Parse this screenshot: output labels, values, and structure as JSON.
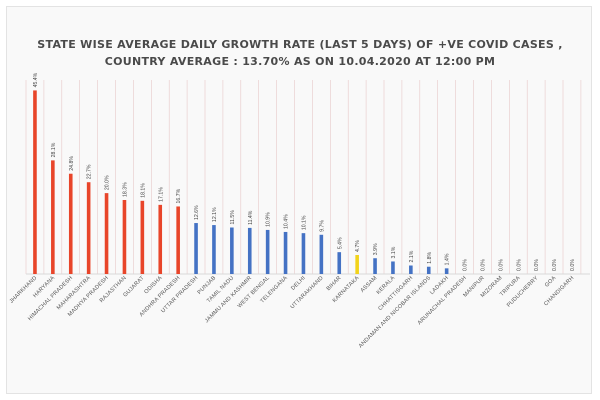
{
  "chart_data": {
    "type": "bar",
    "title": "STATE WISE AVERAGE DAILY GROWTH RATE (LAST 5 DAYS) OF +VE COVID CASES ,",
    "subtitle": "COUNTRY AVERAGE : 13.70% AS ON 10.04.2020 AT 12:00 PM",
    "xlabel": "",
    "ylabel": "",
    "ylim": [
      0,
      50
    ],
    "grid": true,
    "legend": "none",
    "categories": [
      "JHARKHAND",
      "HARYANA",
      "HIMACHAL PRADESH",
      "MAHARASHTRA",
      "MADHYA PRADESH",
      "RAJASTHAN",
      "GUJARAT",
      "ODISHA",
      "ANDHRA PRADESH",
      "UTTAR PRADESH",
      "PUNJAB",
      "TAMIL NADU",
      "JAMMU AND KASHMIR",
      "WEST BENGAL",
      "TELENGANA",
      "DELHI",
      "UTTARAKHAND",
      "BIHAR",
      "KARNATAKA",
      "ASSAM",
      "KERALA",
      "CHHATTISGARH",
      "ANDAMAN AND NICOBAR ISLANDS",
      "LADAKH",
      "ARUNACHAL PRADESH",
      "MANIPUR",
      "MIZORAM",
      "TRIPURA",
      "PUDUCHERRY",
      "GOA",
      "CHANDIGARH"
    ],
    "values": [
      45.4,
      28.1,
      24.8,
      22.7,
      20.0,
      18.3,
      18.1,
      17.1,
      16.7,
      12.6,
      12.1,
      11.5,
      11.4,
      10.9,
      10.4,
      10.1,
      9.7,
      5.4,
      4.7,
      3.9,
      3.1,
      2.1,
      1.8,
      1.4,
      0.0,
      0.0,
      0.0,
      0.0,
      0.0,
      0.0,
      0.0
    ],
    "value_labels": [
      "45.4%",
      "28.1%",
      "24.8%",
      "22.7%",
      "20.0%",
      "18.3%",
      "18.1%",
      "17.1%",
      "16.7%",
      "12.6%",
      "12.1%",
      "11.5%",
      "11.4%",
      "10.9%",
      "10.4%",
      "10.1%",
      "9.7%",
      "5.4%",
      "4.7%",
      "3.9%",
      "3.1%",
      "2.1%",
      "1.8%",
      "1.4%",
      "0.0%",
      "0.0%",
      "0.0%",
      "0.0%",
      "0.0%",
      "0.0%",
      "0.0%"
    ],
    "bar_colors": [
      "#e8452a",
      "#e8452a",
      "#e8452a",
      "#e8452a",
      "#e8452a",
      "#e8452a",
      "#e8452a",
      "#e8452a",
      "#e8452a",
      "#4472c4",
      "#4472c4",
      "#4472c4",
      "#4472c4",
      "#4472c4",
      "#4472c4",
      "#4472c4",
      "#4472c4",
      "#4472c4",
      "#f2d31a",
      "#4472c4",
      "#4472c4",
      "#4472c4",
      "#4472c4",
      "#4472c4",
      "#4472c4",
      "#4472c4",
      "#4472c4",
      "#4472c4",
      "#4472c4",
      "#4472c4",
      "#4472c4"
    ],
    "colors": {
      "above_average": "#e8452a",
      "below_average": "#4472c4",
      "highlight": "#f2d31a",
      "gridline": "#e6c8c8"
    }
  }
}
